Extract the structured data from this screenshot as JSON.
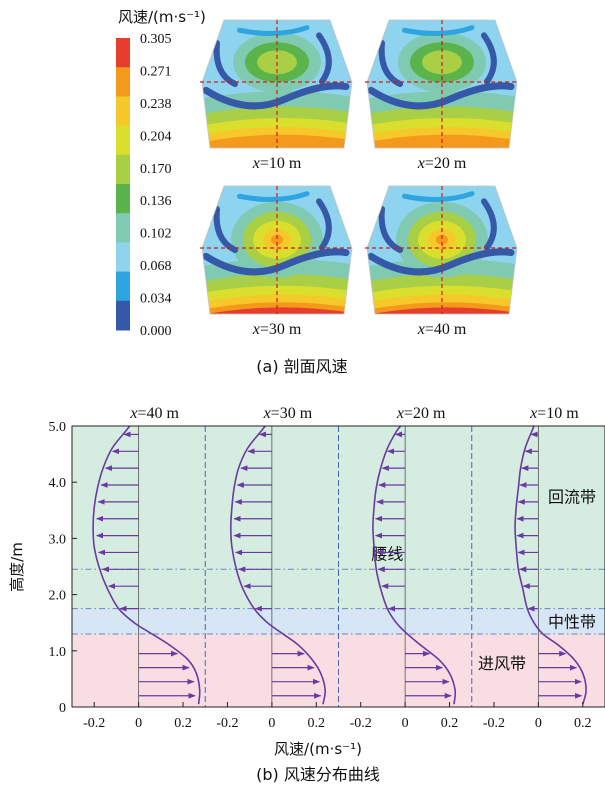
{
  "figure": {
    "panel_a": {
      "caption": "(a) 剖面风速",
      "colorbar": {
        "title": "风速/(m·s⁻¹)",
        "ticks": [
          "0.305",
          "0.271",
          "0.238",
          "0.204",
          "0.170",
          "0.136",
          "0.102",
          "0.068",
          "0.034",
          "0.000"
        ],
        "colors": [
          "#e63d2c",
          "#f39a1d",
          "#f7c82a",
          "#d9df2c",
          "#a8cf45",
          "#5bb34c",
          "#7fcab0",
          "#8ed4ee",
          "#2ea4e0",
          "#3558a8"
        ]
      },
      "sections": [
        {
          "label": "x=10 m",
          "var": "x",
          "rest": "=10 m"
        },
        {
          "label": "x=20 m",
          "var": "x",
          "rest": "=20 m"
        },
        {
          "label": "x=30 m",
          "var": "x",
          "rest": "=30 m"
        },
        {
          "label": "x=40 m",
          "var": "x",
          "rest": "=40 m"
        }
      ]
    },
    "panel_b": {
      "caption": "(b) 风速分布曲线",
      "ylabel": "高度/m",
      "xlabel": "风速/(m·s⁻¹)",
      "yticks": [
        "0",
        "1.0",
        "2.0",
        "3.0",
        "4.0",
        "5.0"
      ],
      "xticks": [
        "-0.2",
        "0",
        "0.2"
      ],
      "zones": [
        {
          "name": "回流带",
          "from": 1.75,
          "to": 5.0,
          "color": "#d5ece0"
        },
        {
          "name": "中性带",
          "from": 1.3,
          "to": 1.75,
          "color": "#d6e6f4"
        },
        {
          "name": "进风带",
          "from": 0.0,
          "to": 1.3,
          "color": "#f8dde3"
        }
      ],
      "waist_label": "腰线",
      "waist_height": 2.45
    }
  },
  "chart_data": {
    "type": "line",
    "title": "(b) 风速分布曲线",
    "xlabel": "风速/(m·s⁻¹)",
    "ylabel": "高度/m",
    "ylim": [
      0,
      5.0
    ],
    "xlim_per_panel": [
      -0.3,
      0.3
    ],
    "x_ticks": [
      -0.2,
      0,
      0.2
    ],
    "y_ticks": [
      0,
      1.0,
      2.0,
      3.0,
      4.0,
      5.0
    ],
    "grid": false,
    "series": [
      {
        "name": "x=40 m",
        "height": [
          0.05,
          0.3,
          0.6,
          0.85,
          1.1,
          1.3,
          1.5,
          1.75,
          2.1,
          2.45,
          2.85,
          3.2,
          3.55,
          3.9,
          4.25,
          4.6,
          4.9,
          5.0
        ],
        "speed": [
          0.27,
          0.275,
          0.26,
          0.22,
          0.14,
          0.06,
          -0.02,
          -0.09,
          -0.14,
          -0.175,
          -0.2,
          -0.205,
          -0.2,
          -0.185,
          -0.16,
          -0.12,
          -0.06,
          -0.04
        ]
      },
      {
        "name": "x=30 m",
        "height": [
          0.05,
          0.3,
          0.6,
          0.85,
          1.1,
          1.3,
          1.5,
          1.75,
          2.1,
          2.45,
          2.85,
          3.2,
          3.55,
          3.9,
          4.25,
          4.6,
          4.9,
          5.0
        ],
        "speed": [
          0.23,
          0.24,
          0.22,
          0.18,
          0.12,
          0.05,
          -0.02,
          -0.08,
          -0.13,
          -0.16,
          -0.18,
          -0.185,
          -0.18,
          -0.17,
          -0.15,
          -0.11,
          -0.05,
          -0.03
        ]
      },
      {
        "name": "x=20 m",
        "height": [
          0.05,
          0.3,
          0.6,
          0.85,
          1.1,
          1.3,
          1.5,
          1.75,
          2.1,
          2.45,
          2.85,
          3.2,
          3.55,
          3.9,
          4.25,
          4.6,
          4.9,
          5.0
        ],
        "speed": [
          0.22,
          0.225,
          0.2,
          0.15,
          0.07,
          0.01,
          -0.04,
          -0.08,
          -0.11,
          -0.13,
          -0.14,
          -0.145,
          -0.14,
          -0.13,
          -0.11,
          -0.08,
          -0.04,
          -0.02
        ]
      },
      {
        "name": "x=10 m",
        "height": [
          0.05,
          0.3,
          0.6,
          0.85,
          1.1,
          1.3,
          1.5,
          1.75,
          2.1,
          2.45,
          2.85,
          3.2,
          3.55,
          3.9,
          4.25,
          4.6,
          4.9,
          5.0
        ],
        "speed": [
          0.2,
          0.215,
          0.2,
          0.16,
          0.09,
          0.02,
          -0.02,
          -0.05,
          -0.07,
          -0.09,
          -0.1,
          -0.105,
          -0.1,
          -0.09,
          -0.08,
          -0.06,
          -0.03,
          -0.02
        ]
      }
    ],
    "arrows": {
      "heights": [
        0.2,
        0.45,
        0.7,
        0.95,
        1.75,
        2.15,
        2.45,
        2.75,
        3.05,
        3.35,
        3.65,
        3.95,
        4.25,
        4.55,
        4.85
      ]
    }
  }
}
